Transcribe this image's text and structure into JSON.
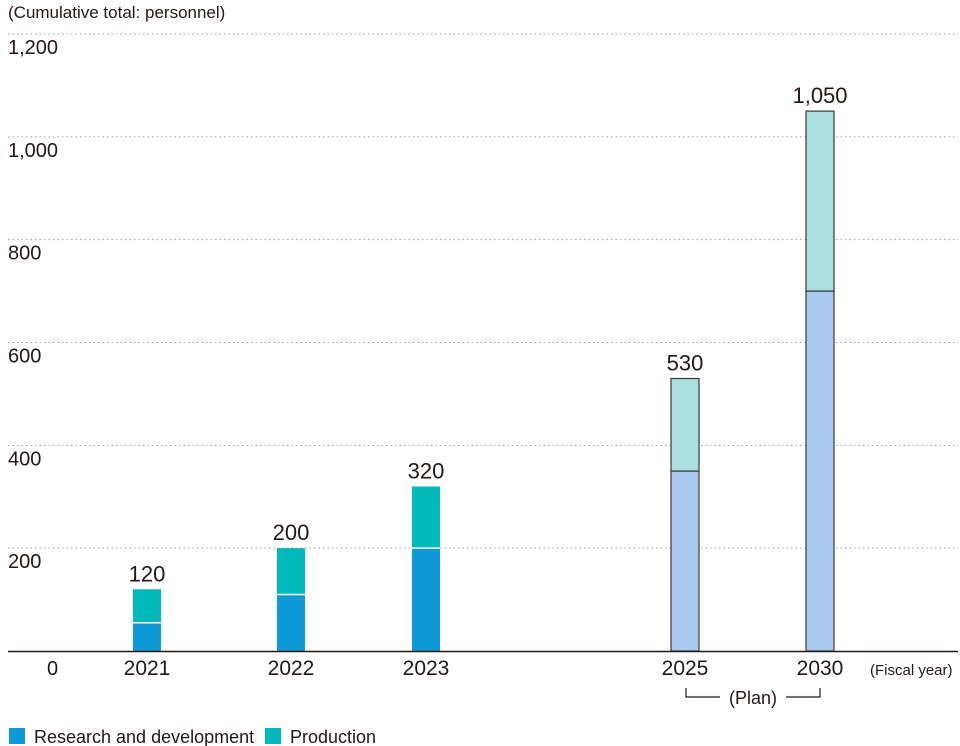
{
  "chart_data": {
    "type": "bar",
    "stacked": true,
    "unit_label": "(Cumulative total: personnel)",
    "x_axis_suffix": "(Fiscal year)",
    "plan_label": "(Plan)",
    "categories": [
      "2021",
      "2022",
      "2023",
      "2025",
      "2030"
    ],
    "planned": [
      false,
      false,
      false,
      true,
      true
    ],
    "series": [
      {
        "name": "Research and development",
        "values": [
          55,
          110,
          200,
          350,
          700
        ],
        "color": "#0e9ad8",
        "plan_color": "#a9cbef"
      },
      {
        "name": "Production",
        "values": [
          65,
          90,
          120,
          180,
          350
        ],
        "color": "#00b9bb",
        "plan_color": "#a9e0df"
      }
    ],
    "totals": [
      "120",
      "200",
      "320",
      "530",
      "1,050"
    ],
    "yticks": [
      {
        "value": 0,
        "label": "0"
      },
      {
        "value": 200,
        "label": "200"
      },
      {
        "value": 400,
        "label": "400"
      },
      {
        "value": 600,
        "label": "600"
      },
      {
        "value": 800,
        "label": "800"
      },
      {
        "value": 1000,
        "label": "1,000"
      },
      {
        "value": 1200,
        "label": "1,200"
      }
    ],
    "ylim": [
      0,
      1200
    ],
    "grid": true,
    "legend_placement": "bottom-left"
  }
}
